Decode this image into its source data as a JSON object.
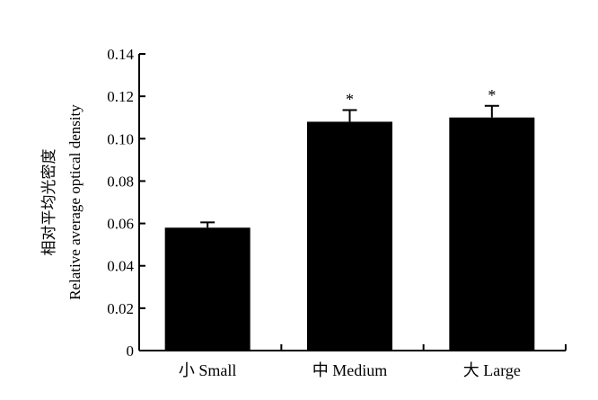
{
  "chart_data": {
    "type": "bar",
    "categories": [
      "小 Small",
      "中 Medium",
      "大 Large"
    ],
    "values": [
      0.058,
      0.108,
      0.11
    ],
    "errors": [
      0.0025,
      0.0055,
      0.0055
    ],
    "annotations": [
      "",
      "*",
      "*"
    ],
    "ylabel_line1": "相对平均光密度",
    "ylabel_line2": "Relative average optical density",
    "xlabel": "",
    "title": "",
    "ylim": [
      0,
      0.14
    ],
    "yticks": [
      "0",
      "0.02",
      "0.04",
      "0.06",
      "0.08",
      "0.10",
      "0.12",
      "0.14"
    ],
    "bar_color": "#000000",
    "grid": false,
    "legend": "none"
  }
}
